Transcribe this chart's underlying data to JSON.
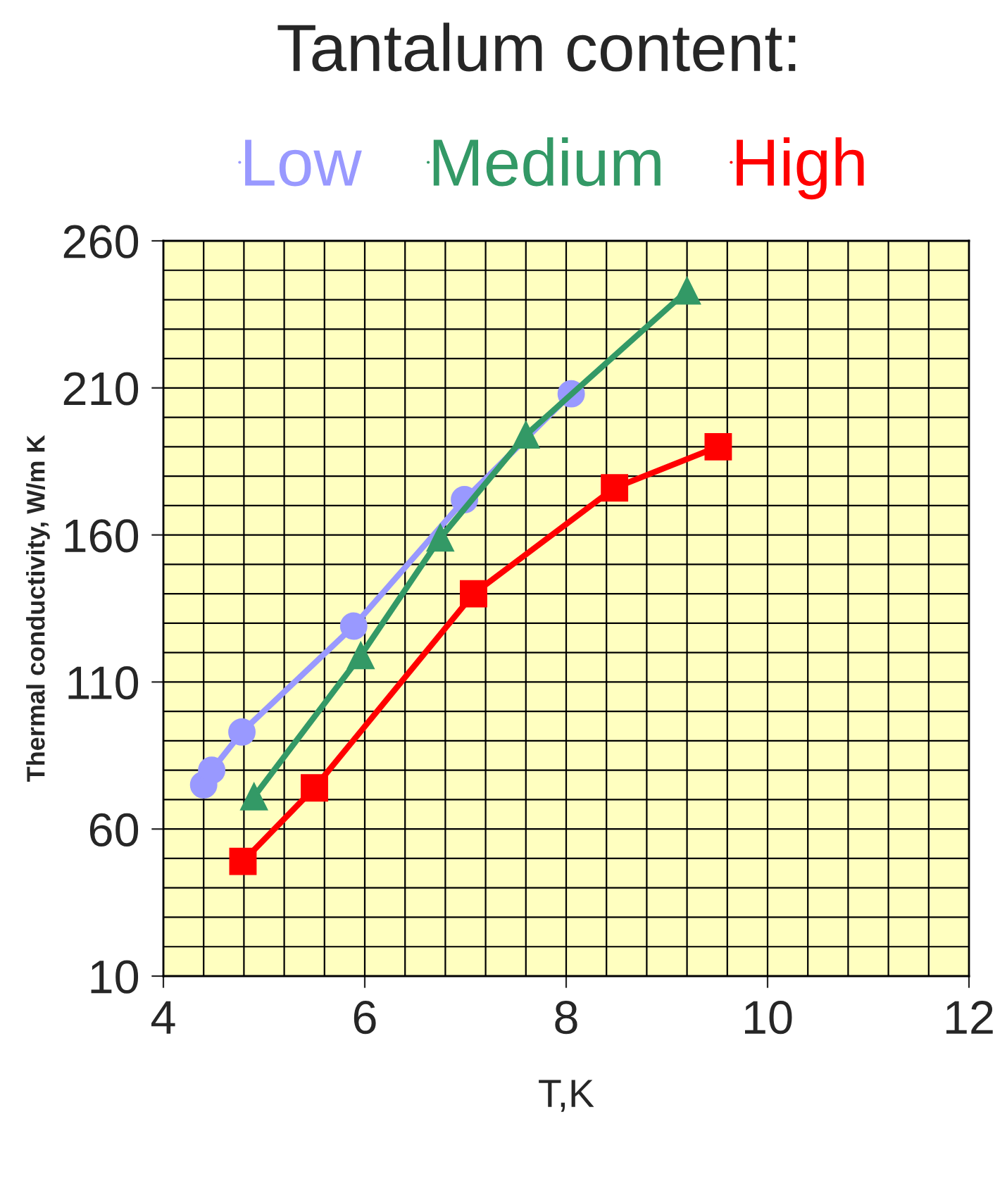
{
  "chart_data": {
    "type": "line",
    "title": "Tantalum content:",
    "xlabel": "T,K",
    "ylabel": "Thermal conductivity, W/m K",
    "xlim": [
      4,
      12
    ],
    "xticks": [
      4,
      6,
      8,
      10,
      12
    ],
    "ylim": [
      10,
      260
    ],
    "yticks": [
      10,
      60,
      110,
      160,
      210,
      260
    ],
    "grid": true,
    "legend": "top",
    "line_style": "solid",
    "series": [
      {
        "name": "Low",
        "color": "#9999ff",
        "marker": "circle",
        "x": [
          4.4,
          4.48,
          4.78,
          5.89,
          6.99,
          8.05
        ],
        "values": [
          75,
          80,
          93,
          129,
          172,
          208
        ]
      },
      {
        "name": "Medium",
        "color": "#339966",
        "marker": "triangle",
        "x": [
          4.9,
          5.96,
          6.75,
          7.6,
          9.2
        ],
        "values": [
          71,
          119,
          159,
          194,
          243
        ]
      },
      {
        "name": "High",
        "color": "#ff0000",
        "marker": "square",
        "x": [
          4.79,
          5.5,
          7.08,
          8.48,
          9.51
        ],
        "values": [
          49,
          74,
          140,
          176,
          190
        ]
      }
    ]
  }
}
